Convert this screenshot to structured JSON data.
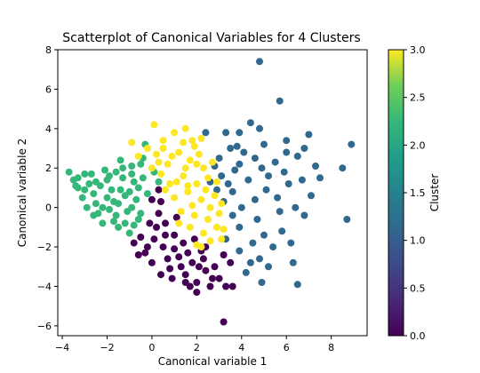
{
  "chart_data": {
    "type": "scatter",
    "title": "Scatterplot of Canonical Variables for 4 Clusters",
    "xlabel": "Canonical variable 1",
    "ylabel": "Canonical variable 2",
    "xlim": [
      -4.2,
      9.6
    ],
    "ylim": [
      -6.5,
      8
    ],
    "xticks": [
      -4,
      -2,
      0,
      2,
      4,
      6,
      8
    ],
    "xtick_labels": [
      "−4",
      "−2",
      "0",
      "2",
      "4",
      "6",
      "8"
    ],
    "yticks": [
      -6,
      -4,
      -2,
      0,
      2,
      4,
      6,
      8
    ],
    "ytick_labels": [
      "−6",
      "−4",
      "−2",
      "0",
      "2",
      "4",
      "6",
      "8"
    ],
    "grid": false,
    "colorbar": {
      "label": "Cluster",
      "range": [
        0,
        3
      ],
      "ticks": [
        0,
        0.5,
        1,
        1.5,
        2,
        2.5,
        3
      ],
      "tick_labels": [
        "0.0",
        "0.5",
        "1.0",
        "1.5",
        "2.0",
        "2.5",
        "3.0"
      ],
      "colormap": "viridis"
    },
    "series": [
      {
        "cluster": 0,
        "color": "#440154",
        "points": [
          [
            -0.5,
            -1.5
          ],
          [
            -0.3,
            -2.3
          ],
          [
            0.0,
            -2.8
          ],
          [
            0.2,
            -1.0
          ],
          [
            0.5,
            -2.0
          ],
          [
            0.8,
            -3.1
          ],
          [
            1.0,
            -1.4
          ],
          [
            1.2,
            -2.5
          ],
          [
            1.5,
            -3.4
          ],
          [
            1.8,
            -2.8
          ],
          [
            2.0,
            -3.8
          ],
          [
            2.2,
            -2.2
          ],
          [
            2.4,
            -3.2
          ],
          [
            2.6,
            -4.0
          ],
          [
            2.0,
            -4.3
          ],
          [
            3.0,
            -3.6
          ],
          [
            3.3,
            -4.0
          ],
          [
            3.6,
            -4.0
          ],
          [
            3.5,
            -2.8
          ],
          [
            3.2,
            -2.4
          ],
          [
            0.3,
            -0.3
          ],
          [
            0.6,
            -0.8
          ],
          [
            -0.2,
            -2.0
          ],
          [
            1.4,
            -1.8
          ],
          [
            0.9,
            -3.6
          ],
          [
            1.7,
            -4.0
          ],
          [
            2.8,
            -3.0
          ],
          [
            -0.8,
            -1.8
          ],
          [
            0.4,
            -3.4
          ],
          [
            1.1,
            -0.5
          ],
          [
            3.2,
            -5.8
          ],
          [
            0.1,
            -1.6
          ],
          [
            0.7,
            -2.6
          ],
          [
            1.3,
            -3.0
          ],
          [
            1.9,
            -1.6
          ],
          [
            2.3,
            -2.6
          ],
          [
            0.0,
            0.4
          ],
          [
            0.3,
            0.9
          ],
          [
            1.0,
            -2.1
          ],
          [
            1.6,
            -2.3
          ],
          [
            -0.6,
            -2.4
          ],
          [
            2.7,
            -3.6
          ],
          [
            2.1,
            -3.0
          ],
          [
            1.5,
            -3.8
          ],
          [
            0.6,
            -1.4
          ],
          [
            -0.1,
            -0.8
          ],
          [
            0.4,
            0.3
          ],
          [
            2.4,
            -2.0
          ]
        ]
      },
      {
        "cluster": 1,
        "color": "#31688e",
        "points": [
          [
            4.8,
            7.4
          ],
          [
            5.7,
            5.4
          ],
          [
            4.4,
            4.3
          ],
          [
            3.3,
            3.8
          ],
          [
            3.8,
            3.1
          ],
          [
            5.0,
            3.2
          ],
          [
            6.0,
            3.4
          ],
          [
            7.0,
            3.7
          ],
          [
            8.9,
            3.2
          ],
          [
            8.5,
            2.0
          ],
          [
            7.3,
            2.1
          ],
          [
            6.5,
            2.6
          ],
          [
            5.5,
            2.3
          ],
          [
            4.6,
            2.5
          ],
          [
            3.9,
            2.2
          ],
          [
            3.1,
            1.6
          ],
          [
            3.6,
            0.8
          ],
          [
            4.3,
            1.4
          ],
          [
            5.1,
            0.9
          ],
          [
            6.1,
            1.2
          ],
          [
            7.1,
            0.6
          ],
          [
            6.8,
            -0.4
          ],
          [
            5.7,
            -0.2
          ],
          [
            4.7,
            -0.6
          ],
          [
            3.9,
            -1.0
          ],
          [
            3.3,
            -1.6
          ],
          [
            3.9,
            -2.2
          ],
          [
            4.4,
            -2.8
          ],
          [
            5.2,
            -3.0
          ],
          [
            6.3,
            -2.8
          ],
          [
            6.5,
            -3.9
          ],
          [
            4.9,
            -3.8
          ],
          [
            4.2,
            -3.3
          ],
          [
            8.7,
            -0.6
          ],
          [
            3.5,
            3.0
          ],
          [
            4.1,
            2.8
          ],
          [
            4.9,
            2.0
          ],
          [
            5.9,
            1.8
          ],
          [
            6.7,
            1.4
          ],
          [
            3.2,
            0.3
          ],
          [
            4.0,
            0.0
          ],
          [
            5.0,
            -1.4
          ],
          [
            5.8,
            -1.2
          ],
          [
            4.5,
            -1.8
          ],
          [
            3.6,
            -0.4
          ],
          [
            2.8,
            2.1
          ],
          [
            3.0,
            2.5
          ],
          [
            3.9,
            3.8
          ],
          [
            4.8,
            4.0
          ],
          [
            6.8,
            3.0
          ],
          [
            6.2,
            -1.8
          ],
          [
            5.4,
            -2.0
          ],
          [
            7.5,
            1.5
          ],
          [
            3.4,
            1.2
          ],
          [
            4.6,
            0.4
          ],
          [
            5.6,
            0.5
          ],
          [
            6.4,
            0.0
          ],
          [
            2.6,
            1.3
          ],
          [
            3.7,
            1.9
          ],
          [
            4.8,
            -2.6
          ],
          [
            2.4,
            3.8
          ],
          [
            2.9,
            0.9
          ],
          [
            5.2,
            1.6
          ],
          [
            6.0,
            2.8
          ]
        ]
      },
      {
        "cluster": 2,
        "color": "#35b779",
        "points": [
          [
            -3.7,
            1.8
          ],
          [
            -3.5,
            1.4
          ],
          [
            -3.3,
            1.0
          ],
          [
            -3.1,
            0.5
          ],
          [
            -3.0,
            1.7
          ],
          [
            -2.8,
            1.2
          ],
          [
            -2.6,
            0.7
          ],
          [
            -2.5,
            0.2
          ],
          [
            -2.4,
            -0.3
          ],
          [
            -2.2,
            -0.8
          ],
          [
            -2.1,
            1.9
          ],
          [
            -2.0,
            1.4
          ],
          [
            -1.8,
            0.9
          ],
          [
            -1.7,
            0.3
          ],
          [
            -1.6,
            -0.4
          ],
          [
            -1.5,
            -1.0
          ],
          [
            -1.4,
            2.4
          ],
          [
            -1.3,
            1.5
          ],
          [
            -1.2,
            0.6
          ],
          [
            -1.1,
            -0.2
          ],
          [
            -1.0,
            -1.3
          ],
          [
            -0.9,
            2.1
          ],
          [
            -0.8,
            1.3
          ],
          [
            -0.7,
            0.4
          ],
          [
            -0.6,
            -0.6
          ],
          [
            -0.5,
            2.2
          ],
          [
            -0.4,
            1.5
          ],
          [
            -0.2,
            0.7
          ],
          [
            0.1,
            1.8
          ],
          [
            0.3,
            1.3
          ],
          [
            -2.9,
            0.0
          ],
          [
            -2.3,
            1.1
          ],
          [
            -1.9,
            -0.1
          ],
          [
            -1.4,
            0.9
          ],
          [
            -0.9,
            0.0
          ],
          [
            -0.4,
            2.5
          ],
          [
            -0.3,
            3.2
          ],
          [
            -3.3,
            1.5
          ],
          [
            -2.7,
            1.7
          ],
          [
            -1.6,
            1.8
          ],
          [
            -1.2,
            -0.8
          ],
          [
            -0.8,
            -0.9
          ],
          [
            -2.0,
            0.5
          ],
          [
            -1.7,
            -0.7
          ],
          [
            -0.6,
            1.0
          ],
          [
            -2.5,
            1.3
          ],
          [
            -3.0,
            0.9
          ],
          [
            -1.9,
            1.6
          ],
          [
            -1.3,
            2.0
          ],
          [
            -1.0,
            0.8
          ],
          [
            -0.5,
            -0.3
          ],
          [
            -2.2,
            0.0
          ],
          [
            -1.5,
            0.2
          ],
          [
            -0.9,
            1.7
          ],
          [
            -2.6,
            -0.4
          ],
          [
            -3.4,
            1.1
          ]
        ]
      },
      {
        "cluster": 3,
        "color": "#fde725",
        "points": [
          [
            0.1,
            4.2
          ],
          [
            0.5,
            3.4
          ],
          [
            1.0,
            3.8
          ],
          [
            1.5,
            4.0
          ],
          [
            1.9,
            3.1
          ],
          [
            2.2,
            3.5
          ],
          [
            0.2,
            2.7
          ],
          [
            0.7,
            2.2
          ],
          [
            1.2,
            2.8
          ],
          [
            1.7,
            2.4
          ],
          [
            2.3,
            2.0
          ],
          [
            0.8,
            1.2
          ],
          [
            1.4,
            1.6
          ],
          [
            2.0,
            1.2
          ],
          [
            2.5,
            1.5
          ],
          [
            1.0,
            0.5
          ],
          [
            1.6,
            0.8
          ],
          [
            2.2,
            0.4
          ],
          [
            2.8,
            0.6
          ],
          [
            1.3,
            -0.2
          ],
          [
            1.9,
            -0.4
          ],
          [
            2.5,
            -0.6
          ],
          [
            3.0,
            -0.3
          ],
          [
            1.7,
            -1.0
          ],
          [
            2.3,
            -1.3
          ],
          [
            2.9,
            -1.0
          ],
          [
            2.6,
            -1.7
          ],
          [
            3.1,
            -1.6
          ],
          [
            0.4,
            1.7
          ],
          [
            -0.2,
            3.0
          ],
          [
            -0.6,
            2.6
          ],
          [
            0.9,
            2.6
          ],
          [
            1.5,
            2.0
          ],
          [
            2.1,
            2.7
          ],
          [
            2.7,
            2.3
          ],
          [
            0.6,
            0.9
          ],
          [
            1.1,
            1.3
          ],
          [
            1.8,
            0.1
          ],
          [
            2.4,
            0.9
          ],
          [
            2.9,
            1.3
          ],
          [
            3.1,
            0.2
          ],
          [
            1.2,
            -0.8
          ],
          [
            2.0,
            -1.9
          ],
          [
            0.3,
            2.3
          ],
          [
            -0.9,
            3.3
          ],
          [
            0.5,
            3.0
          ],
          [
            1.4,
            3.3
          ],
          [
            2.0,
            2.2
          ],
          [
            1.6,
            1.1
          ],
          [
            2.6,
            0.0
          ],
          [
            3.2,
            -1.1
          ],
          [
            2.2,
            -2.0
          ],
          [
            0.0,
            2.0
          ],
          [
            1.8,
            3.4
          ]
        ]
      }
    ]
  }
}
